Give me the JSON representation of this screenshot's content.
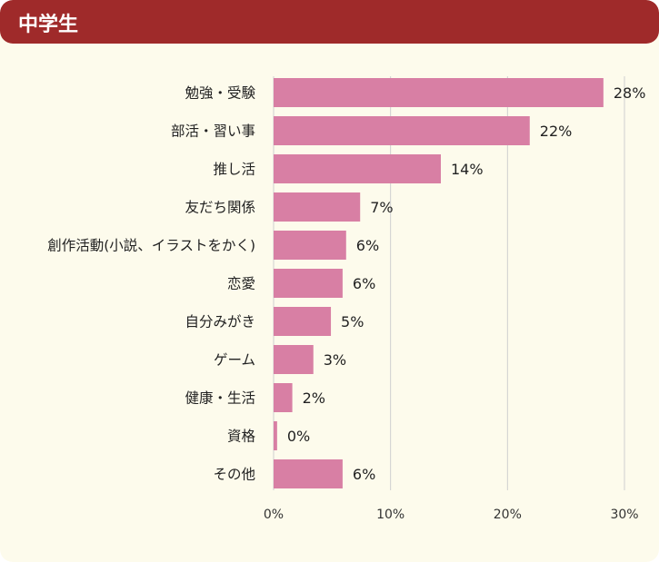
{
  "header": {
    "title": "中学生"
  },
  "colors": {
    "header_bg": "#9f2a2a",
    "panel_bg": "#fdfbec",
    "bar": "#d87fa4",
    "grid": "#cfcfcf"
  },
  "chart_data": {
    "type": "bar",
    "orientation": "horizontal",
    "categories": [
      "勉強・受験",
      "部活・習い事",
      "推し活",
      "友だち関係",
      "創作活動(小説、イラストをかく)",
      "恋愛",
      "自分みがき",
      "ゲーム",
      "健康・生活",
      "資格",
      "その他"
    ],
    "values": [
      28.2,
      21.9,
      14.3,
      7.4,
      6.2,
      5.9,
      4.9,
      3.4,
      1.6,
      0.3,
      5.9
    ],
    "value_labels": [
      "28%",
      "22%",
      "14%",
      "7%",
      "6%",
      "6%",
      "5%",
      "3%",
      "2%",
      "0%",
      "6%"
    ],
    "xlim": [
      0,
      30
    ],
    "x_ticks": [
      "0%",
      "10%",
      "20%",
      "30%"
    ],
    "grid": true,
    "legend": "none"
  }
}
